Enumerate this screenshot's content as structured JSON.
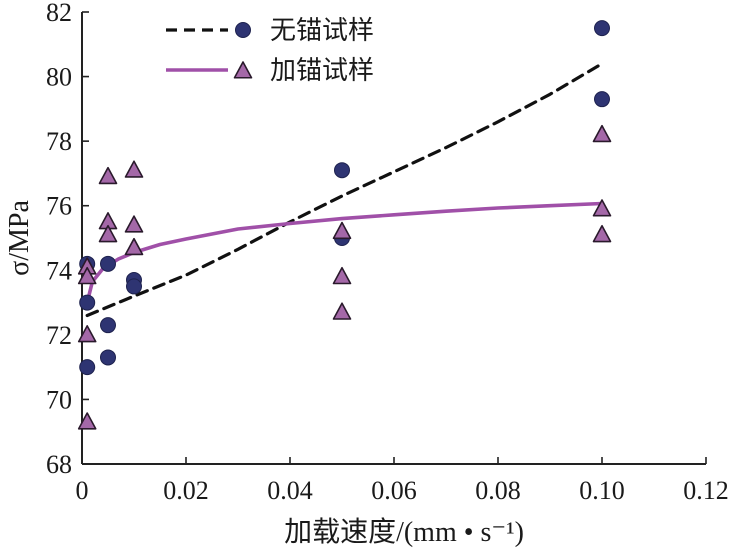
{
  "chart_data": {
    "type": "scatter",
    "xlabel": "加载速度/(mm • s⁻¹)",
    "ylabel": "σ/MPa",
    "xlim": [
      0,
      0.12
    ],
    "ylim": [
      68,
      82
    ],
    "xticks": [
      0,
      0.02,
      0.04,
      0.06,
      0.08,
      0.1,
      0.12
    ],
    "xtick_labels": [
      "0",
      "0.02",
      "0.04",
      "0.06",
      "0.08",
      "0.10",
      "0.12"
    ],
    "yticks": [
      68,
      70,
      72,
      74,
      76,
      78,
      80,
      82
    ],
    "ytick_labels": [
      "68",
      "70",
      "72",
      "74",
      "76",
      "78",
      "80",
      "82"
    ],
    "grid": false,
    "legend_position": "top-left",
    "series": [
      {
        "name": "无锚试样",
        "marker": "circle",
        "color": "#2e3472",
        "line_style": "dashed",
        "line_color": "#111111",
        "points": [
          [
            0.001,
            74.2
          ],
          [
            0.001,
            73.0
          ],
          [
            0.001,
            71.0
          ],
          [
            0.005,
            74.2
          ],
          [
            0.005,
            72.3
          ],
          [
            0.005,
            71.3
          ],
          [
            0.01,
            73.7
          ],
          [
            0.01,
            73.5
          ],
          [
            0.05,
            77.1
          ],
          [
            0.05,
            75.0
          ],
          [
            0.1,
            81.5
          ],
          [
            0.1,
            79.3
          ]
        ],
        "fit": [
          [
            0.001,
            72.6
          ],
          [
            0.01,
            73.2
          ],
          [
            0.02,
            73.85
          ],
          [
            0.03,
            74.65
          ],
          [
            0.04,
            75.5
          ],
          [
            0.05,
            76.3
          ],
          [
            0.06,
            77.05
          ],
          [
            0.07,
            77.8
          ],
          [
            0.08,
            78.6
          ],
          [
            0.09,
            79.45
          ],
          [
            0.1,
            80.4
          ]
        ]
      },
      {
        "name": "加锚试样",
        "marker": "triangle",
        "color": "#a468a8",
        "line_style": "solid",
        "line_color": "#a050a8",
        "points": [
          [
            0.001,
            74.1
          ],
          [
            0.001,
            73.8
          ],
          [
            0.001,
            72.0
          ],
          [
            0.001,
            69.3
          ],
          [
            0.005,
            76.9
          ],
          [
            0.005,
            75.5
          ],
          [
            0.005,
            75.1
          ],
          [
            0.01,
            77.1
          ],
          [
            0.01,
            75.4
          ],
          [
            0.01,
            74.7
          ],
          [
            0.05,
            75.2
          ],
          [
            0.05,
            73.8
          ],
          [
            0.05,
            72.7
          ],
          [
            0.1,
            78.2
          ],
          [
            0.1,
            75.9
          ],
          [
            0.1,
            75.1
          ]
        ],
        "fit": [
          [
            0.001,
            73.0
          ],
          [
            0.002,
            73.65
          ],
          [
            0.004,
            74.05
          ],
          [
            0.007,
            74.35
          ],
          [
            0.01,
            74.55
          ],
          [
            0.015,
            74.8
          ],
          [
            0.02,
            74.97
          ],
          [
            0.03,
            75.28
          ],
          [
            0.04,
            75.45
          ],
          [
            0.05,
            75.6
          ],
          [
            0.06,
            75.72
          ],
          [
            0.07,
            75.83
          ],
          [
            0.08,
            75.93
          ],
          [
            0.09,
            76.0
          ],
          [
            0.1,
            76.07
          ]
        ]
      }
    ]
  }
}
